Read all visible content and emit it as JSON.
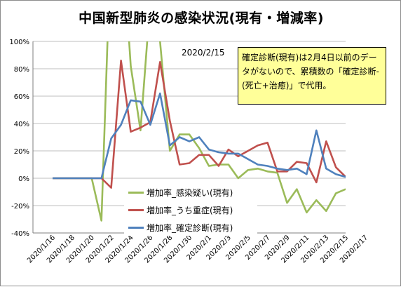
{
  "title": "中国新型肺炎の感染状況(現有・増減率)",
  "date_label": "2020/2/15",
  "note": "確定診断(現有)は2月4日以前のデータがないので、累積数の「確定診断-(死亡+治癒)」で代用。",
  "colors": {
    "suspected": "#9bbb59",
    "severe": "#c0504d",
    "confirmed": "#4f81bd"
  },
  "chart_data": {
    "type": "line",
    "title": "中国新型肺炎の感染状況(現有・増減率)",
    "xlabel": "",
    "ylabel": "",
    "ylim": [
      -40,
      100
    ],
    "clip_y": true,
    "y_ticks": [
      "-40%",
      "-20%",
      "0%",
      "20%",
      "40%",
      "60%",
      "80%",
      "100%"
    ],
    "y_tick_values": [
      -40,
      -20,
      0,
      20,
      40,
      60,
      80,
      100
    ],
    "grid": "horizontal",
    "legend_position": "bottom-center",
    "x_ticks": [
      "2020/1/16",
      "2020/1/18",
      "2020/1/20",
      "2020/1/22",
      "2020/1/24",
      "2020/1/26",
      "2020/1/28",
      "2020/1/30",
      "2020/2/1",
      "2020/2/3",
      "2020/2/5",
      "2020/2/7",
      "2020/2/9",
      "2020/2/11",
      "2020/2/13",
      "2020/2/15",
      "2020/2/17"
    ],
    "x": [
      "2020/1/16",
      "2020/1/17",
      "2020/1/18",
      "2020/1/19",
      "2020/1/20",
      "2020/1/21",
      "2020/1/22",
      "2020/1/23",
      "2020/1/24",
      "2020/1/25",
      "2020/1/26",
      "2020/1/27",
      "2020/1/28",
      "2020/1/29",
      "2020/1/30",
      "2020/1/31",
      "2020/2/1",
      "2020/2/2",
      "2020/2/3",
      "2020/2/4",
      "2020/2/5",
      "2020/2/6",
      "2020/2/7",
      "2020/2/8",
      "2020/2/9",
      "2020/2/10",
      "2020/2/11",
      "2020/2/12",
      "2020/2/13",
      "2020/2/14",
      "2020/2/15"
    ],
    "series": [
      {
        "name": "増加率_感染疑い(現有)",
        "color": "#9bbb59",
        "values": [
          0,
          0,
          0,
          0,
          0,
          -31,
          180,
          190,
          82,
          35,
          130,
          100,
          20,
          32,
          32,
          22,
          9,
          10,
          10,
          0,
          6,
          7,
          5,
          4,
          -18,
          -8,
          -25,
          -16,
          -24,
          -11,
          -8
        ]
      },
      {
        "name": "増加率_うち重症(現有)",
        "color": "#c0504d",
        "values": [
          0,
          0,
          0,
          0,
          0,
          0,
          -7,
          86,
          34,
          37,
          41,
          85,
          42,
          10,
          11,
          17,
          17,
          9,
          21,
          16,
          20,
          24,
          26,
          5,
          5,
          12,
          11,
          -3,
          27,
          8,
          1
        ]
      },
      {
        "name": "増加率_確定診断(現有)",
        "color": "#4f81bd",
        "values": [
          0,
          0,
          0,
          0,
          0,
          0,
          29,
          39,
          57,
          56,
          39,
          62,
          24,
          30,
          27,
          30,
          21,
          19,
          18,
          18,
          14,
          10,
          9,
          7,
          6,
          7,
          3,
          35,
          7,
          3,
          1
        ]
      }
    ]
  }
}
